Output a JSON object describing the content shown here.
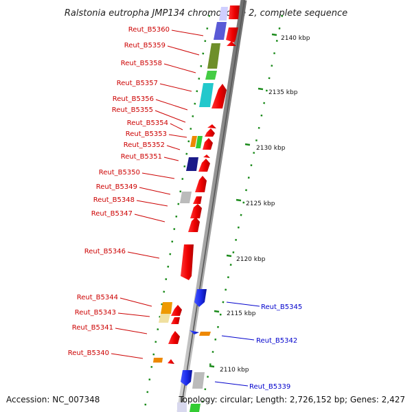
{
  "title": "Ralstonia eutropha JMP134 chromosome 2, complete sequence",
  "footer": {
    "accession": "Accession: NC_007348",
    "topology": "Topology: circular; Length: 2,726,152 bp; Genes: 2,427"
  },
  "colors": {
    "forward_label": "#cc0000",
    "reverse_label": "#0000cc",
    "backbone": "#9a9a9a",
    "tick": "#1a8a1a"
  },
  "ticks": [
    {
      "label": "2140 kbp"
    },
    {
      "label": "2135 kbp"
    },
    {
      "label": "2130 kbp"
    },
    {
      "label": "2125 kbp"
    },
    {
      "label": "2120 kbp"
    },
    {
      "label": "2115 kbp"
    },
    {
      "label": "2110 kbp"
    }
  ],
  "genes_left": [
    {
      "label": "Reut_B5360"
    },
    {
      "label": "Reut_B5359"
    },
    {
      "label": "Reut_B5358"
    },
    {
      "label": "Reut_B5357"
    },
    {
      "label": "Reut_B5356"
    },
    {
      "label": "Reut_B5355"
    },
    {
      "label": "Reut_B5354"
    },
    {
      "label": "Reut_B5353"
    },
    {
      "label": "Reut_B5352"
    },
    {
      "label": "Reut_B5351"
    },
    {
      "label": "Reut_B5350"
    },
    {
      "label": "Reut_B5349"
    },
    {
      "label": "Reut_B5348"
    },
    {
      "label": "Reut_B5347"
    },
    {
      "label": "Reut_B5346"
    },
    {
      "label": "Reut_B5344"
    },
    {
      "label": "Reut_B5343"
    },
    {
      "label": "Reut_B5341"
    },
    {
      "label": "Reut_B5340"
    }
  ],
  "genes_right": [
    {
      "label": "Reut_B5345"
    },
    {
      "label": "Reut_B5342"
    },
    {
      "label": "Reut_B5339"
    }
  ]
}
